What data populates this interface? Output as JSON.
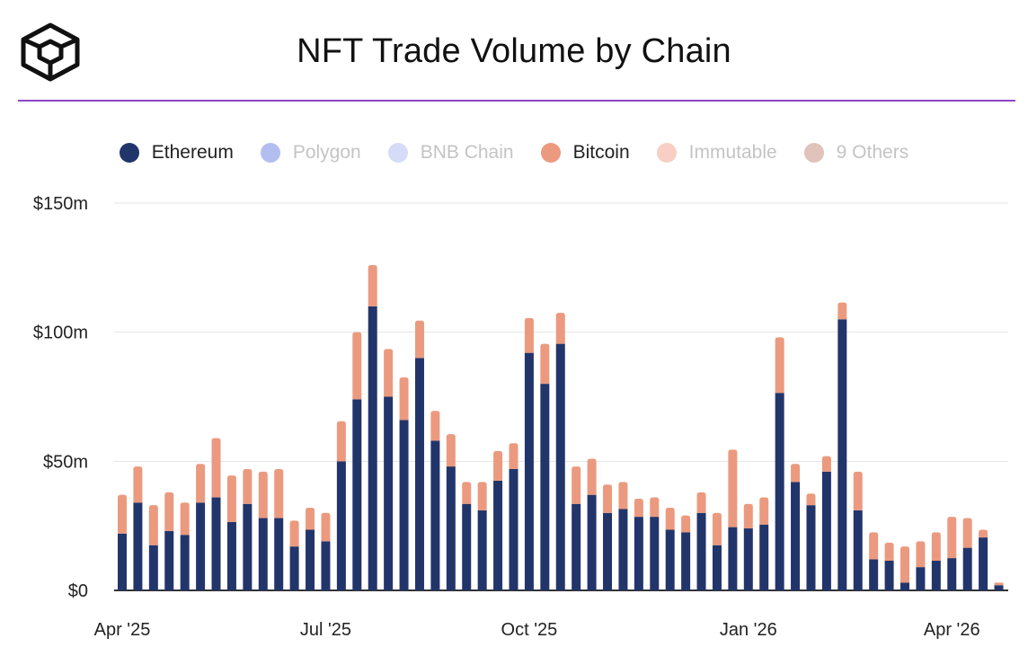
{
  "header": {
    "title": "NFT Trade Volume by Chain",
    "logo_icon": "cube-logo-icon",
    "accent_color": "#8e44c9"
  },
  "legend": [
    {
      "label": "Ethereum",
      "color": "#22356b",
      "active": true
    },
    {
      "label": "Polygon",
      "color": "#b3bdf0",
      "active": false
    },
    {
      "label": "BNB Chain",
      "color": "#d4dcf8",
      "active": false
    },
    {
      "label": "Bitcoin",
      "color": "#eb9a7f",
      "active": true
    },
    {
      "label": "Immutable",
      "color": "#f7cfc4",
      "active": false
    },
    {
      "label": "9 Others",
      "color": "#e0c3bb",
      "active": false
    }
  ],
  "chart_data": {
    "type": "bar",
    "stacked": true,
    "title": "NFT Trade Volume by Chain",
    "xlabel": "",
    "ylabel": "",
    "ylim": [
      0,
      150
    ],
    "y_ticks": [
      0,
      50,
      100,
      150
    ],
    "y_tick_labels": [
      "$0",
      "$50m",
      "$100m",
      "$150m"
    ],
    "x_tick_labels": [
      {
        "label": "Apr '25",
        "index": 0
      },
      {
        "label": "Jul '25",
        "index": 13
      },
      {
        "label": "Oct '25",
        "index": 26
      },
      {
        "label": "Jan '26",
        "index": 40
      },
      {
        "label": "Apr '26",
        "index": 53
      }
    ],
    "grid": true,
    "legend_position": "top",
    "series": [
      {
        "name": "Ethereum",
        "color": "#22356b",
        "values": [
          22,
          34,
          17.5,
          23,
          21.5,
          34,
          36,
          26.5,
          33.5,
          28,
          28,
          17,
          23.5,
          19,
          50,
          74,
          110,
          75,
          66,
          90,
          58,
          48,
          33.5,
          31,
          42.5,
          47,
          92,
          80,
          95.5,
          33.5,
          37,
          30,
          31.5,
          28.5,
          28.5,
          23.5,
          22.5,
          30,
          17.5,
          24.5,
          24,
          25.5,
          76.5,
          42,
          33,
          46,
          105,
          31,
          12,
          11.5,
          3,
          9,
          11.5,
          12.5,
          16.5,
          20.5,
          2
        ]
      },
      {
        "name": "Bitcoin",
        "color": "#eb9a7f",
        "values": [
          15,
          14,
          15.5,
          15,
          12.5,
          15,
          23,
          18,
          13.5,
          18,
          19,
          10,
          8.5,
          11,
          15.5,
          26,
          16,
          18.5,
          16.5,
          14.5,
          11.5,
          12.5,
          8.5,
          11,
          11.5,
          10,
          13.5,
          15.5,
          12,
          14.5,
          14,
          11,
          10.5,
          7,
          7.5,
          8.5,
          6.5,
          8,
          12.5,
          30,
          9.5,
          10.5,
          21.5,
          7,
          4.5,
          6,
          6.5,
          15,
          10.5,
          7,
          14,
          10,
          11,
          16,
          11.5,
          3,
          1
        ]
      }
    ]
  }
}
